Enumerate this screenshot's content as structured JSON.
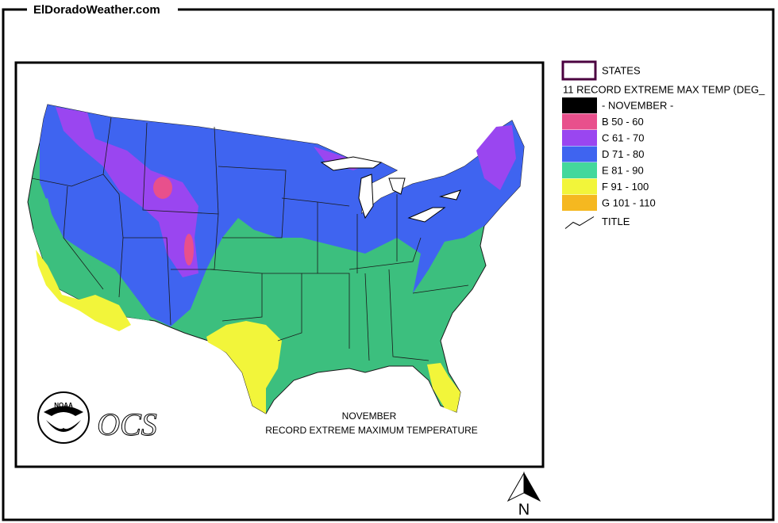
{
  "header": {
    "title": "ElDoradoWeather.com"
  },
  "map": {
    "caption": [
      "NOVEMBER",
      "RECORD EXTREME MAXIMUM TEMPERATURE"
    ],
    "logo": "NOAA",
    "agency": "OCS",
    "north": "N"
  },
  "legend": {
    "states": "STATES",
    "heading": "11 RECORD EXTREME MAX TEMP (DEG_",
    "classes": [
      {
        "label": "- NOVEMBER -",
        "color": "#000000"
      },
      {
        "label": "B 50 - 60",
        "color": "#e8508c"
      },
      {
        "label": "C 61 - 70",
        "color": "#9a46f0"
      },
      {
        "label": "D 71 - 80",
        "color": "#3f64f0"
      },
      {
        "label": "E 81 - 90",
        "color": "#44d89c"
      },
      {
        "label": "F 91 - 100",
        "color": "#f2f53a"
      },
      {
        "label": "G 101 - 110",
        "color": "#f5b820"
      }
    ],
    "title_label": "TITLE"
  }
}
